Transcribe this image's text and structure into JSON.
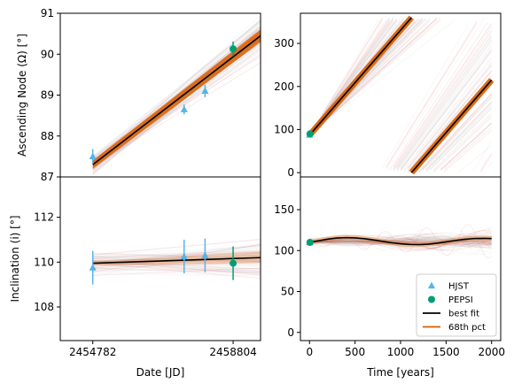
{
  "chart_data": [
    {
      "type": "scatter",
      "panel": "top-left",
      "ylabel": "Ascending Node (Ω) [°]",
      "xlabel": "",
      "xlim": [
        2453850,
        2459590
      ],
      "ylim": [
        87,
        91
      ],
      "yticks": [
        87,
        88,
        89,
        90,
        91
      ],
      "yticklabels": [
        "87",
        "88",
        "89",
        "90",
        "91"
      ],
      "series": [
        {
          "name": "HJST",
          "marker": "triangle",
          "color": "#56B4E9",
          "x": [
            2454782,
            2457400,
            2458000
          ],
          "y": [
            87.5,
            88.65,
            89.1
          ],
          "err": [
            0.18,
            0.12,
            0.15
          ]
        },
        {
          "name": "PEPSI",
          "marker": "circle",
          "color": "#009E73",
          "x": [
            2458804
          ],
          "y": [
            90.13
          ],
          "err": [
            0.18
          ]
        },
        {
          "name": "best fit",
          "type": "line",
          "color": "#000000",
          "x": [
            2454782,
            2459590
          ],
          "y": [
            87.3,
            90.45
          ]
        }
      ],
      "band": {
        "name": "68th pct",
        "color": "#D55E00",
        "x": [
          2454782,
          2459590
        ],
        "y_low": [
          87.2,
          90.3
        ],
        "y_high": [
          87.4,
          90.6
        ]
      }
    },
    {
      "type": "line",
      "panel": "top-right",
      "xlim": [
        -100,
        2100
      ],
      "ylim": [
        -10,
        370
      ],
      "yticks": [
        0,
        100,
        200,
        300
      ],
      "yticklabels": [
        "0",
        "100",
        "200",
        "300"
      ],
      "series": [
        {
          "name": "best fit",
          "type": "line",
          "color": "#000000",
          "x": [
            0,
            1120
          ],
          "y": [
            87,
            360
          ]
        },
        {
          "name": "best fit",
          "type": "line",
          "color": "#000000",
          "x": [
            1120,
            2000
          ],
          "y": [
            0,
            215
          ]
        }
      ],
      "points": [
        {
          "name": "HJST",
          "marker": "triangle",
          "color": "#56B4E9",
          "x": 0,
          "y": 87.5
        },
        {
          "name": "PEPSI",
          "marker": "circle",
          "color": "#009E73",
          "x": 5,
          "y": 90
        }
      ]
    },
    {
      "type": "scatter",
      "panel": "bottom-left",
      "ylabel": "Inclination (i) [°]",
      "xlabel": "Date [JD]",
      "xlim": [
        2453850,
        2459590
      ],
      "ylim": [
        106.5,
        113.8
      ],
      "yticks": [
        108,
        110,
        112
      ],
      "yticklabels": [
        "108",
        "110",
        "112"
      ],
      "xticks": [
        2454782,
        2458804
      ],
      "xticklabels": [
        "2454782",
        "2458804"
      ],
      "series": [
        {
          "name": "HJST",
          "marker": "triangle",
          "color": "#56B4E9",
          "x": [
            2454782,
            2457400,
            2458000
          ],
          "y": [
            109.75,
            110.25,
            110.3
          ],
          "err": [
            0.75,
            0.75,
            0.75
          ]
        },
        {
          "name": "PEPSI",
          "marker": "circle",
          "color": "#009E73",
          "x": [
            2458804
          ],
          "y": [
            109.95
          ],
          "err": [
            0.75
          ]
        },
        {
          "name": "best fit",
          "type": "line",
          "color": "#000000",
          "x": [
            2454782,
            2459590
          ],
          "y": [
            109.95,
            110.2
          ]
        }
      ]
    },
    {
      "type": "line",
      "panel": "bottom-right",
      "xlabel": "Time [years]",
      "xlim": [
        -100,
        2100
      ],
      "ylim": [
        -10,
        190
      ],
      "yticks": [
        0,
        50,
        100,
        150
      ],
      "yticklabels": [
        "0",
        "50",
        "100",
        "150"
      ],
      "xticks": [
        0,
        500,
        1000,
        1500,
        2000
      ],
      "xticklabels": [
        "0",
        "500",
        "1000",
        "1500",
        "2000"
      ],
      "series": [
        {
          "name": "best fit",
          "type": "line",
          "color": "#000000",
          "x": [
            0,
            100,
            200,
            300,
            400,
            500,
            600,
            700,
            800,
            900,
            1000,
            1100,
            1200,
            1300,
            1400,
            1500,
            1600,
            1700,
            1800,
            1900,
            2000
          ],
          "y": [
            110,
            112,
            114,
            115.3,
            115.8,
            115.5,
            114.5,
            113,
            111.3,
            109.6,
            108.3,
            107.5,
            107.3,
            107.8,
            109,
            110.6,
            112.3,
            113.7,
            114.6,
            114.9,
            114.7
          ]
        }
      ],
      "points": [
        {
          "name": "HJST",
          "marker": "triangle",
          "color": "#56B4E9",
          "x": 0,
          "y": 110
        },
        {
          "name": "PEPSI",
          "marker": "circle",
          "color": "#009E73",
          "x": 5,
          "y": 110
        }
      ],
      "legend": {
        "placement": "lower-right",
        "entries": [
          {
            "label": "HJST",
            "marker": "triangle",
            "color": "#56B4E9"
          },
          {
            "label": "PEPSI",
            "marker": "circle",
            "color": "#009E73"
          },
          {
            "label": "best fit",
            "marker": "line",
            "color": "#000000"
          },
          {
            "label": "68th pct",
            "marker": "line",
            "color": "#D55E00"
          }
        ]
      }
    }
  ]
}
